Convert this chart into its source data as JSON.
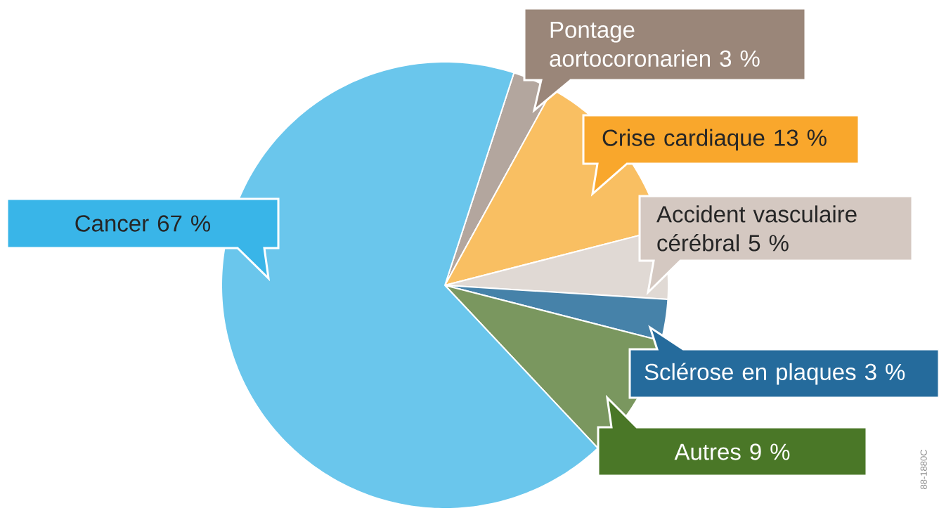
{
  "chart_data": {
    "type": "pie",
    "categories": [
      "Pontage aortocoronarien",
      "Crise cardiaque",
      "Accident vasculaire cérébral",
      "Sclérose en plaques",
      "Autres",
      "Cancer"
    ],
    "values": [
      3,
      13,
      5,
      3,
      9,
      67
    ],
    "value_labels": [
      "3 %",
      "13 %",
      "5 %",
      "3 %",
      "9 %",
      "67 %"
    ],
    "colors": [
      "#b3a69e",
      "#f9bf62",
      "#e0d9d4",
      "#4682a9",
      "#7a975f",
      "#6ac6ec"
    ],
    "annotations": [
      "88-1880C"
    ]
  }
}
